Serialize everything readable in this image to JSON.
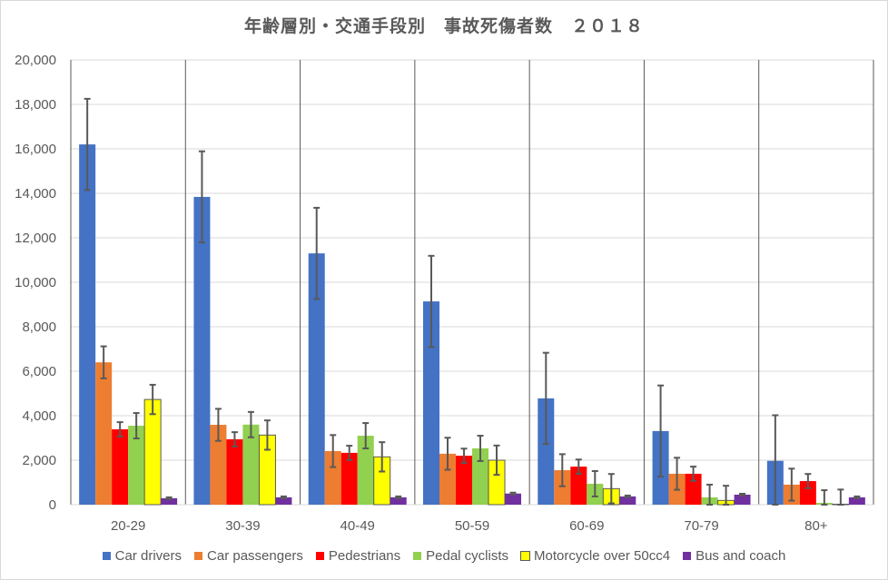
{
  "chart_data": {
    "type": "bar",
    "title": "年齢層別・交通手段別　事故死傷者数　２０１８",
    "xlabel": "",
    "ylabel": "",
    "ylim": [
      0,
      20000
    ],
    "yticks": [
      "0",
      "2,000",
      "4,000",
      "6,000",
      "8,000",
      "10,000",
      "12,000",
      "14,000",
      "16,000",
      "18,000",
      "20,000"
    ],
    "grid": true,
    "legend_position": "bottom",
    "categories": [
      "20-29",
      "30-39",
      "40-49",
      "50-59",
      "60-69",
      "70-79",
      "80+"
    ],
    "series": [
      {
        "name": "Car drivers",
        "color": "#4472c4",
        "values": [
          16200,
          13840,
          11300,
          9140,
          4780,
          3310,
          1970
        ],
        "error": 2050
      },
      {
        "name": "Car passengers",
        "color": "#ed7d31",
        "values": [
          6400,
          3590,
          2410,
          2290,
          1550,
          1390,
          900
        ],
        "error": 720
      },
      {
        "name": "Pedestrians",
        "color": "#ff0000",
        "values": [
          3390,
          2940,
          2330,
          2200,
          1710,
          1390,
          1060
        ],
        "error": 320
      },
      {
        "name": "Pedal cyclists",
        "color": "#92d050",
        "values": [
          3550,
          3600,
          3100,
          2530,
          940,
          330,
          80
        ],
        "error": 570
      },
      {
        "name": "Motorcycle over 50cc4",
        "color": "#ffff00",
        "values": [
          4730,
          3130,
          2150,
          2000,
          720,
          190,
          20
        ],
        "error": 660
      },
      {
        "name": "Bus and coach",
        "color": "#7030a0",
        "values": [
          290,
          330,
          330,
          500,
          370,
          450,
          330
        ],
        "error": 40
      }
    ]
  }
}
